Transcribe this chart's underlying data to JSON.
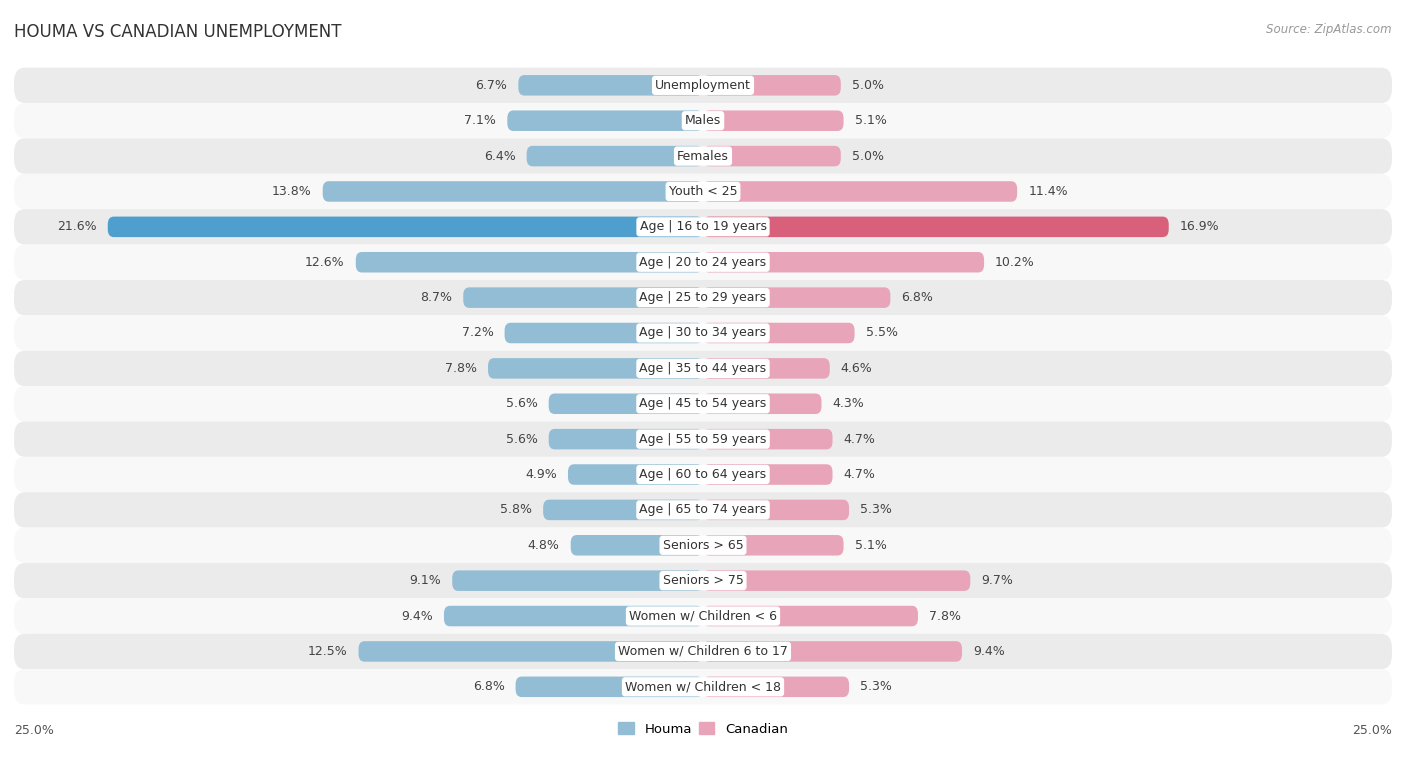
{
  "title": "HOUMA VS CANADIAN UNEMPLOYMENT",
  "source": "Source: ZipAtlas.com",
  "categories": [
    "Unemployment",
    "Males",
    "Females",
    "Youth < 25",
    "Age | 16 to 19 years",
    "Age | 20 to 24 years",
    "Age | 25 to 29 years",
    "Age | 30 to 34 years",
    "Age | 35 to 44 years",
    "Age | 45 to 54 years",
    "Age | 55 to 59 years",
    "Age | 60 to 64 years",
    "Age | 65 to 74 years",
    "Seniors > 65",
    "Seniors > 75",
    "Women w/ Children < 6",
    "Women w/ Children 6 to 17",
    "Women w/ Children < 18"
  ],
  "houma_values": [
    6.7,
    7.1,
    6.4,
    13.8,
    21.6,
    12.6,
    8.7,
    7.2,
    7.8,
    5.6,
    5.6,
    4.9,
    5.8,
    4.8,
    9.1,
    9.4,
    12.5,
    6.8
  ],
  "canadian_values": [
    5.0,
    5.1,
    5.0,
    11.4,
    16.9,
    10.2,
    6.8,
    5.5,
    4.6,
    4.3,
    4.7,
    4.7,
    5.3,
    5.1,
    9.7,
    7.8,
    9.4,
    5.3
  ],
  "houma_color": "#92bdd4",
  "canadian_color": "#e8a4b8",
  "houma_color_highlight": "#4f9fce",
  "canadian_color_highlight": "#d9607a",
  "bar_height": 0.58,
  "x_max": 25.0,
  "bg_row_even": "#ebebeb",
  "bg_row_odd": "#f8f8f8",
  "label_fontsize": 9.0,
  "title_fontsize": 12,
  "source_fontsize": 8.5,
  "legend_fontsize": 9.5
}
